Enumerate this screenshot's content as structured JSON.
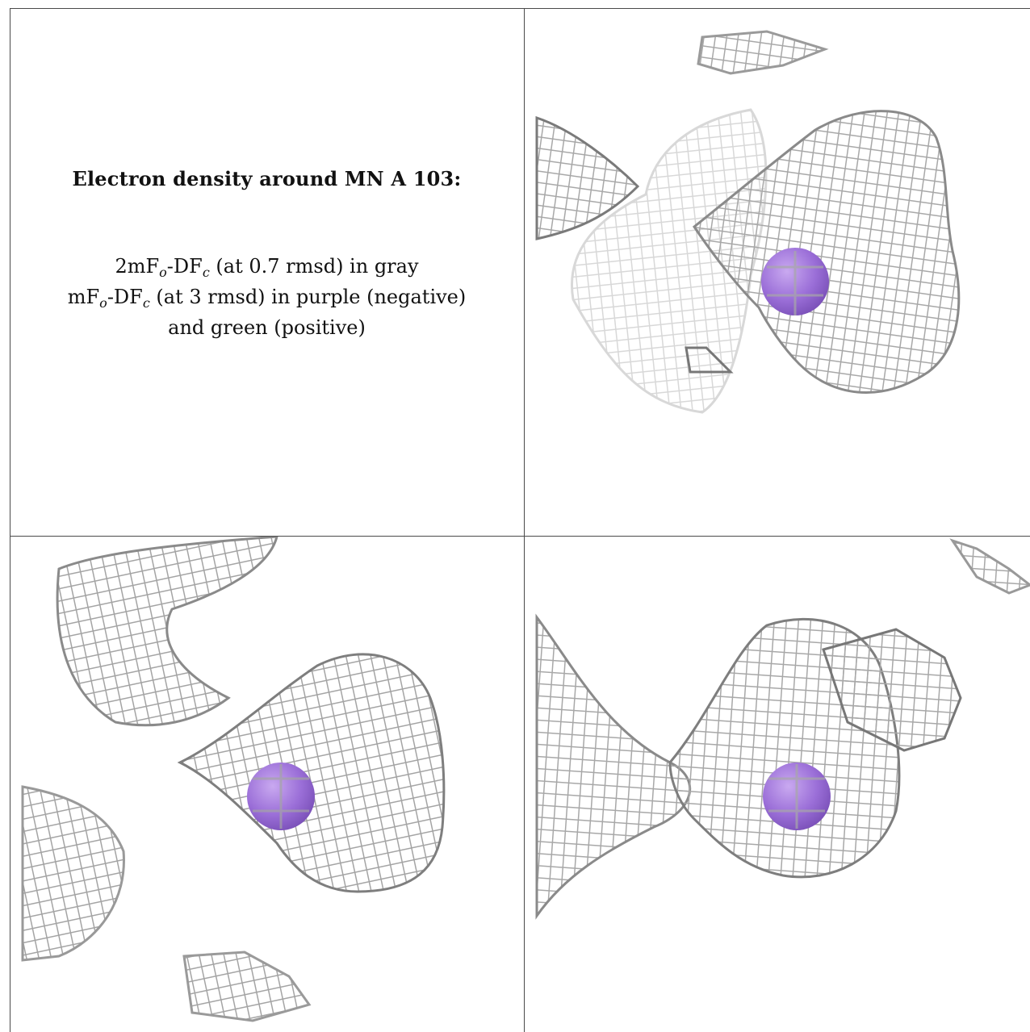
{
  "caption": {
    "title": "Electron density around MN A 103:",
    "line1": {
      "pre": "2mF",
      "s1": "o",
      "mid": "-DF",
      "s2": "c",
      "post": " (at 0.7 rmsd) in gray"
    },
    "line2": {
      "pre": "mF",
      "s1": "o",
      "mid": "-DF",
      "s2": "c",
      "post": " (at 3 rmsd) in purple (negative)"
    },
    "line3": "and green (positive)"
  },
  "colors": {
    "mesh": "#a8a8a8",
    "mesh_dark": "#6e6e6e",
    "mesh_light": "#d8d8d8",
    "atom": "#9b6fd8",
    "border": "#4a4a4a"
  },
  "panels": [
    {
      "name": "view-top-right",
      "atom": "mn-atom-sphere"
    },
    {
      "name": "view-bottom-left",
      "atom": "mn-atom-sphere"
    },
    {
      "name": "view-bottom-right",
      "atom": "mn-atom-sphere"
    }
  ]
}
